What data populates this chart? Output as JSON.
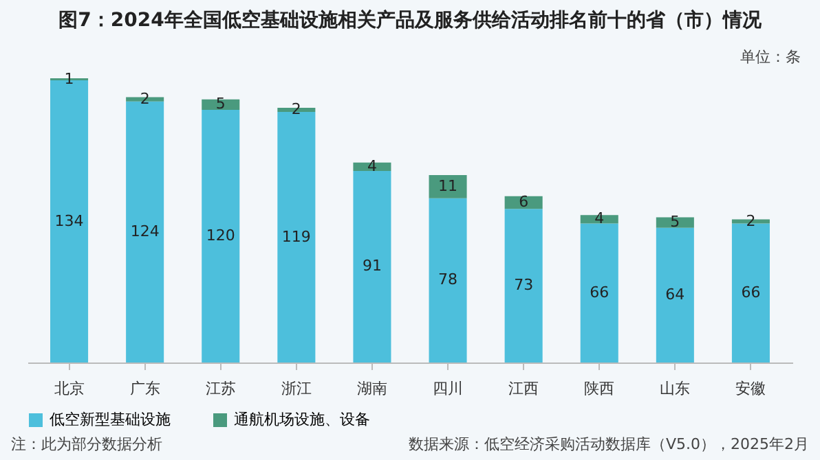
{
  "chart_data": {
    "type": "bar",
    "title": "图7：2024年全国低空基础设施相关产品及服务供给活动排名前十的省（市）情况",
    "categories": [
      "北京",
      "广东",
      "江苏",
      "浙江",
      "湖南",
      "四川",
      "江西",
      "陕西",
      "山东",
      "安徽"
    ],
    "stacked": true,
    "data_labels": true,
    "legend": "bottom",
    "series": [
      {
        "name": "低空新型基础设施",
        "color": "#4dbfdc",
        "values": [
          134,
          124,
          120,
          119,
          91,
          78,
          73,
          66,
          64,
          66
        ]
      },
      {
        "name": "通航机场设施、设备",
        "color": "#4a9a7e",
        "values": [
          1,
          2,
          5,
          2,
          4,
          11,
          6,
          4,
          5,
          2
        ]
      }
    ],
    "annotations": [
      "单位：条",
      "注：此为部分数据分析",
      "数据来源：低空经济采购活动数据库（V5.0），2025年2月"
    ]
  }
}
